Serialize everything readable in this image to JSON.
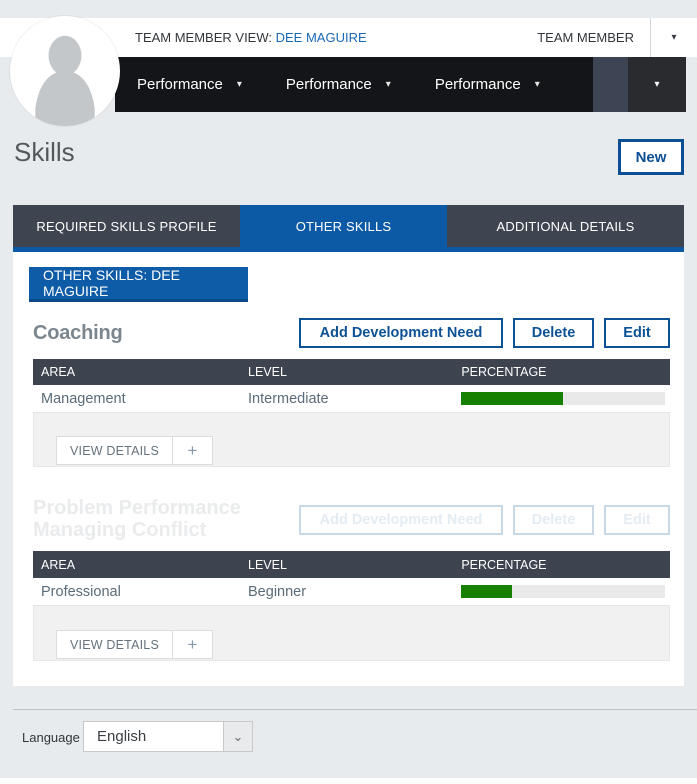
{
  "icons": {
    "caret_down": "▾",
    "select_chevron": "⌄",
    "plus": "+"
  },
  "header": {
    "view_label": "TEAM MEMBER VIEW:",
    "view_value": "DEE MAGUIRE",
    "role_label": "TEAM MEMBER"
  },
  "nav": {
    "items": [
      {
        "label": "Performance"
      },
      {
        "label": "Performance"
      },
      {
        "label": "Performance"
      }
    ]
  },
  "page": {
    "title": "Skills",
    "new_button": "New"
  },
  "tabs": [
    {
      "label": "REQUIRED SKILLS PROFILE",
      "active": false
    },
    {
      "label": "OTHER SKILLS",
      "active": true
    },
    {
      "label": "ADDITIONAL DETAILS",
      "active": false
    }
  ],
  "content": {
    "section_label": "OTHER SKILLS: DEE MAGUIRE",
    "actions": {
      "add": "Add Development Need",
      "delete": "Delete",
      "edit": "Edit"
    },
    "table_headers": {
      "area": "AREA",
      "level": "LEVEL",
      "percentage": "PERCENTAGE"
    },
    "footer_actions": {
      "view_details": "VIEW DETAILS"
    },
    "skills": [
      {
        "name": "Coaching",
        "area": "Management",
        "level": "Intermediate",
        "percentage": 50
      },
      {
        "name": "",
        "area": "Professional",
        "level": "Beginner",
        "percentage": 25
      }
    ],
    "fading_titles": {
      "line1": "Problem Performance",
      "line2": "Managing Conflict"
    }
  },
  "footer": {
    "language_label": "Language",
    "language_value": "English"
  },
  "colors": {
    "accent_blue": "#0c5aa6",
    "button_blue": "#0d4f94",
    "progress_green": "#188000",
    "nav_black": "#131519",
    "tab_gray": "#3e4450"
  }
}
